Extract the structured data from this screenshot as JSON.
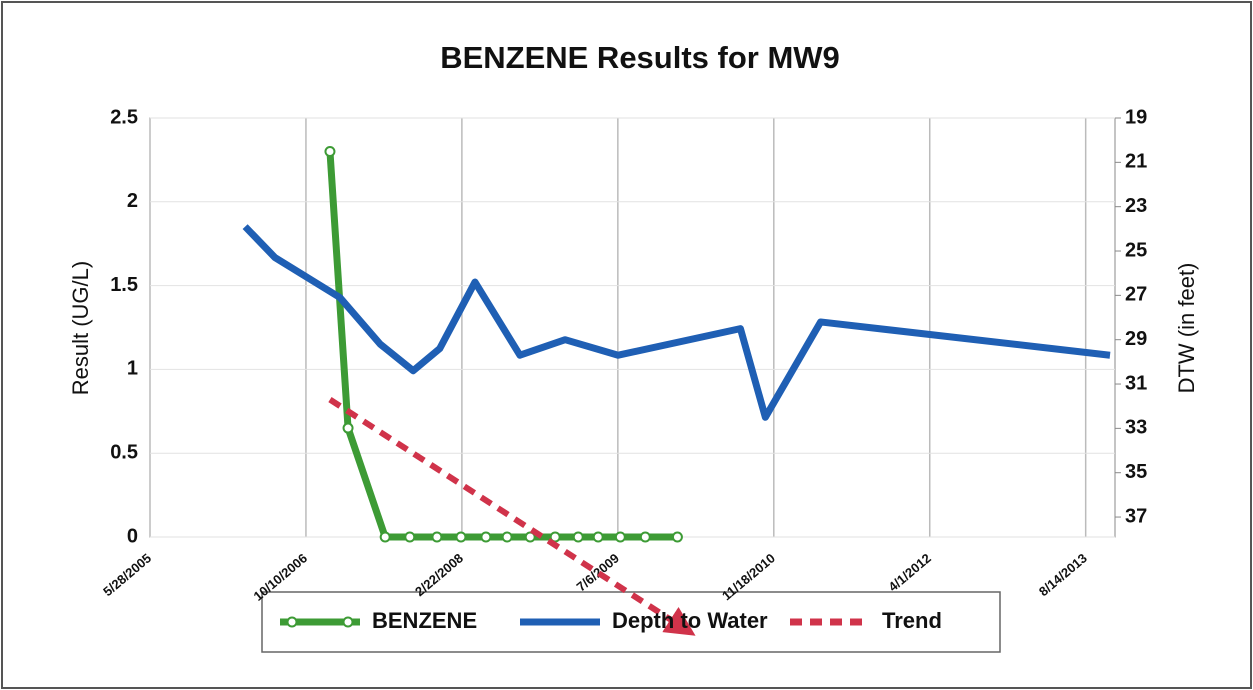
{
  "chart_data": {
    "type": "line",
    "title": "BENZENE Results for MW9",
    "y_label": "Result (UG/L)",
    "y2_label": "DTW (in feet)",
    "xticks": [
      "5/28/2005",
      "10/10/2006",
      "2/22/2008",
      "7/6/2009",
      "11/18/2010",
      "4/1/2012",
      "8/14/2013"
    ],
    "xlim": [
      "5/28/2005",
      "11/16/2013"
    ],
    "ylim": [
      0,
      2.5
    ],
    "yticks": [
      0,
      0.5,
      1,
      1.5,
      2,
      2.5
    ],
    "y2lim": [
      37.9,
      19
    ],
    "y2ticks": [
      19,
      21,
      23,
      25,
      27,
      29,
      31,
      33,
      35,
      37
    ],
    "grid": true,
    "legend": "bottom",
    "series": [
      {
        "name": "BENZENE",
        "color": "#3d9b35",
        "marker": true,
        "x": [
          "12/26/2006",
          "2/22/2007",
          "6/21/2007",
          "9/8/2007",
          "12/4/2007",
          "2/19/2008",
          "5/9/2008",
          "7/16/2008",
          "9/28/2008",
          "12/17/2008",
          "3/1/2009",
          "5/4/2009",
          "7/14/2009",
          "10/2/2009",
          "1/13/2010"
        ],
        "values": [
          2.3,
          0.65,
          0,
          0,
          0,
          0,
          0,
          0,
          0,
          0,
          0,
          0,
          0,
          0,
          0
        ]
      },
      {
        "name": "Depth to Water",
        "color": "#1f5fb4",
        "axis": "y2",
        "x": [
          "3/29/2006",
          "7/3/2006",
          "1/27/2007",
          "6/5/2007",
          "9/19/2007",
          "12/13/2007",
          "4/4/2008",
          "8/26/2008",
          "1/18/2009",
          "7/7/2009",
          "8/3/2010",
          "10/22/2010",
          "4/17/2011",
          "10/31/2013"
        ],
        "values": [
          23.9,
          25.3,
          27.1,
          29.2,
          30.4,
          29.4,
          26.4,
          29.7,
          29.0,
          29.7,
          28.5,
          32.5,
          28.2,
          29.7
        ]
      },
      {
        "name": "Trend",
        "color": "#d0334a",
        "dashed": true,
        "arrow": true,
        "x": [
          "12/26/2006",
          "2/24/2010"
        ],
        "values": [
          0.82,
          -0.57
        ]
      }
    ]
  }
}
